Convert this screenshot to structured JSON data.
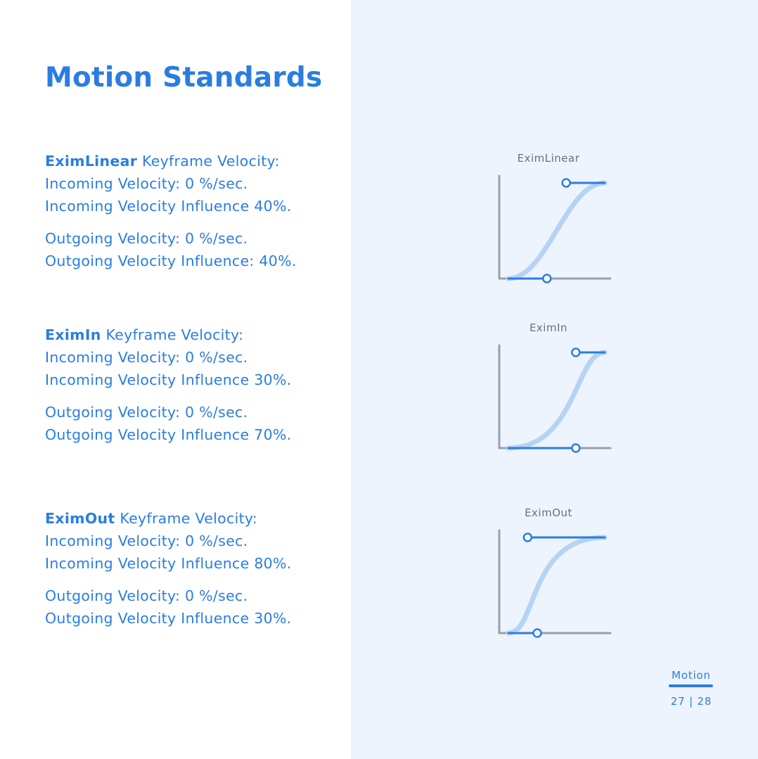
{
  "title": "Motion Standards",
  "sections": [
    {
      "name": "EximLinear",
      "heading_suffix": " Keyframe Velocity:",
      "incoming_velocity": "Incoming Velocity: 0 %/sec.",
      "incoming_influence": "Incoming Velocity Influence 40%.",
      "outgoing_velocity": "Outgoing Velocity: 0 %/sec.",
      "outgoing_influence": "Outgoing Velocity Influence: 40%."
    },
    {
      "name": "EximIn",
      "heading_suffix": " Keyframe Velocity:",
      "incoming_velocity": "Incoming Velocity: 0 %/sec.",
      "incoming_influence": "Incoming Velocity Influence 30%.",
      "outgoing_velocity": "Outgoing Velocity: 0 %/sec.",
      "outgoing_influence": "Outgoing Velocity Influence 70%."
    },
    {
      "name": "EximOut",
      "heading_suffix": " Keyframe Velocity:",
      "incoming_velocity": "Incoming Velocity: 0 %/sec.",
      "incoming_influence": "Incoming Velocity Influence 80%.",
      "outgoing_velocity": "Outgoing Velocity: 0 %/sec.",
      "outgoing_influence": "Outgoing Velocity Influence 30%."
    }
  ],
  "charts": [
    {
      "title": "EximLinear",
      "incoming_influence": 40,
      "outgoing_influence": 40
    },
    {
      "title": "EximIn",
      "incoming_influence": 30,
      "outgoing_influence": 70
    },
    {
      "title": "EximOut",
      "incoming_influence": 80,
      "outgoing_influence": 30
    }
  ],
  "colors": {
    "accent": "#2a7de1",
    "curve": "#b5d3f5",
    "axis": "#9aa1a9",
    "panel": "#edf4fd",
    "chart_title": "#6b7076"
  },
  "footer": {
    "label": "Motion",
    "pages": "27 | 28"
  }
}
